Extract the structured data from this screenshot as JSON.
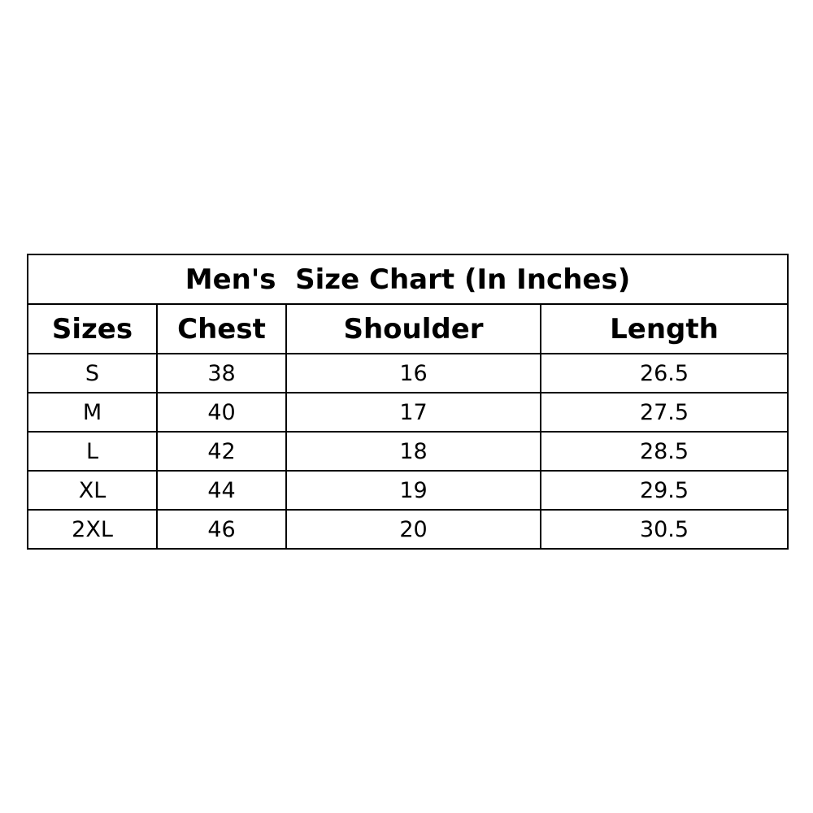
{
  "title": "Men's  Size Chart (In Inches)",
  "columns": [
    "Sizes",
    "Chest",
    "Shoulder",
    "Length"
  ],
  "rows": [
    [
      "S",
      "38",
      "16",
      "26.5"
    ],
    [
      "M",
      "40",
      "17",
      "27.5"
    ],
    [
      "L",
      "42",
      "18",
      "28.5"
    ],
    [
      "XL",
      "44",
      "19",
      "29.5"
    ],
    [
      "2XL",
      "46",
      "20",
      "30.5"
    ]
  ]
}
